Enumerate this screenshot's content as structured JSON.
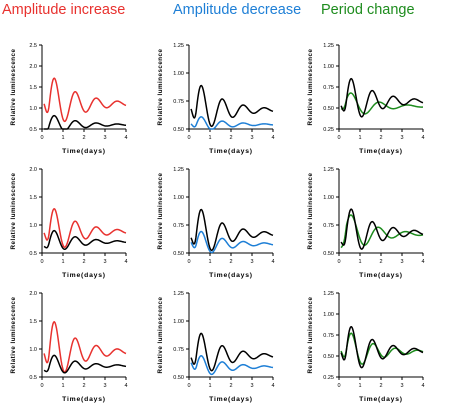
{
  "figure": {
    "columns": [
      {
        "title": "Amplitude increase",
        "color": "#e8322f",
        "condition": "amplitude-increase"
      },
      {
        "title": "Amplitude decrease",
        "color": "#1e7fd6",
        "condition": "amplitude-decrease"
      },
      {
        "title": "Period change",
        "color": "#1e8c1e",
        "condition": "period-change"
      }
    ],
    "xlabel": "Time(days)",
    "ylabel": "Relative luminescence",
    "control_color": "#000000"
  },
  "chart_data": [
    {
      "type": "line",
      "row": 1,
      "col": 1,
      "xlabel": "Time(days)",
      "ylabel": "Relative luminescence",
      "xlim": [
        0,
        4
      ],
      "ylim": [
        0.5,
        2.5
      ],
      "xticks": [
        "0",
        "1",
        "2",
        "3",
        "4"
      ],
      "yticks": [
        "0.5",
        "1.0",
        "1.5",
        "2.0",
        "2.5"
      ],
      "model": {
        "control": {
          "base": 0.6,
          "amp": 0.35,
          "period": 1.0,
          "decay": 0.8,
          "start": 0.45
        },
        "treated": {
          "base": 1.1,
          "amp": 0.95,
          "period": 1.0,
          "decay": 0.75,
          "start": 1.2
        }
      }
    },
    {
      "type": "line",
      "row": 1,
      "col": 2,
      "xlabel": "Time(days)",
      "ylabel": "Relative luminescence",
      "xlim": [
        0,
        4
      ],
      "ylim": [
        0.5,
        1.25
      ],
      "xticks": [
        "0",
        "1",
        "2",
        "3",
        "4"
      ],
      "yticks": [
        "0.50",
        "0.75",
        "1.00",
        "1.25"
      ],
      "model": {
        "control": {
          "base": 0.67,
          "amp": 0.35,
          "period": 1.0,
          "decay": 0.8,
          "start": 0.72
        },
        "treated": {
          "base": 0.54,
          "amp": 0.11,
          "period": 1.0,
          "decay": 0.8,
          "start": 0.56
        }
      }
    },
    {
      "type": "line",
      "row": 1,
      "col": 3,
      "xlabel": "Time(days)",
      "ylabel": "Relative luminescence",
      "xlim": [
        0,
        4
      ],
      "ylim": [
        0.25,
        1.25
      ],
      "xticks": [
        "0",
        "1",
        "2",
        "3",
        "4"
      ],
      "yticks": [
        "0.25",
        "0.50",
        "0.75",
        "1.00",
        "1.25"
      ],
      "model": {
        "control": {
          "base": 0.58,
          "amp": 0.42,
          "period": 1.0,
          "decay": 0.75,
          "start": 0.55
        },
        "treated": {
          "base": 0.52,
          "amp": 0.26,
          "period": 1.35,
          "decay": 0.85,
          "start": 0.5
        }
      }
    },
    {
      "type": "line",
      "row": 2,
      "col": 1,
      "xlabel": "Time(days)",
      "ylabel": "Relative luminescence",
      "xlim": [
        0,
        4
      ],
      "ylim": [
        0.5,
        2.0
      ],
      "xticks": [
        "0",
        "1",
        "2",
        "3",
        "4"
      ],
      "yticks": [
        "0.5",
        "1.0",
        "1.5",
        "2.0"
      ],
      "model": {
        "control": {
          "base": 0.7,
          "amp": 0.32,
          "period": 1.0,
          "decay": 0.8,
          "start": 0.62
        },
        "treated": {
          "base": 0.88,
          "amp": 0.65,
          "period": 1.0,
          "decay": 0.78,
          "start": 0.92
        }
      }
    },
    {
      "type": "line",
      "row": 2,
      "col": 2,
      "xlabel": "Time(days)",
      "ylabel": "Relative luminescence",
      "xlim": [
        0,
        4
      ],
      "ylim": [
        0.5,
        1.25
      ],
      "xticks": [
        "0",
        "1",
        "2",
        "3",
        "4"
      ],
      "yticks": [
        "0.50",
        "0.75",
        "1.00",
        "1.25"
      ],
      "model": {
        "control": {
          "base": 0.67,
          "amp": 0.35,
          "period": 1.0,
          "decay": 0.8,
          "start": 0.66
        },
        "treated": {
          "base": 0.58,
          "amp": 0.18,
          "period": 1.0,
          "decay": 0.8,
          "start": 0.62
        }
      }
    },
    {
      "type": "line",
      "row": 2,
      "col": 3,
      "xlabel": "Time(days)",
      "ylabel": "Relative luminescence",
      "xlim": [
        0,
        4
      ],
      "ylim": [
        0.5,
        1.25
      ],
      "xticks": [
        "0",
        "1",
        "2",
        "3",
        "4"
      ],
      "yticks": [
        "0.50",
        "0.75",
        "1.00",
        "1.25"
      ],
      "model": {
        "control": {
          "base": 0.68,
          "amp": 0.33,
          "period": 1.0,
          "decay": 0.75,
          "start": 0.6
        },
        "treated": {
          "base": 0.67,
          "amp": 0.27,
          "period": 1.3,
          "decay": 0.8,
          "start": 0.52
        }
      }
    },
    {
      "type": "line",
      "row": 3,
      "col": 1,
      "xlabel": "Time(days)",
      "ylabel": "Relative luminescence",
      "xlim": [
        0,
        4
      ],
      "ylim": [
        0.5,
        2.0
      ],
      "xticks": [
        "0",
        "1",
        "2",
        "3",
        "4"
      ],
      "yticks": [
        "0.5",
        "1.0",
        "1.5",
        "2.0"
      ],
      "model": {
        "control": {
          "base": 0.7,
          "amp": 0.3,
          "period": 1.0,
          "decay": 0.8,
          "start": 0.62
        },
        "treated": {
          "base": 0.95,
          "amp": 0.85,
          "period": 1.0,
          "decay": 0.78,
          "start": 1.0
        }
      }
    },
    {
      "type": "line",
      "row": 3,
      "col": 2,
      "xlabel": "Time(days)",
      "ylabel": "Relative luminescence",
      "xlim": [
        0,
        4
      ],
      "ylim": [
        0.5,
        1.25
      ],
      "xticks": [
        "0",
        "1",
        "2",
        "3",
        "4"
      ],
      "yticks": [
        "0.50",
        "0.75",
        "1.00",
        "1.25"
      ],
      "model": {
        "control": {
          "base": 0.69,
          "amp": 0.32,
          "period": 1.0,
          "decay": 0.8,
          "start": 0.7
        },
        "treated": {
          "base": 0.59,
          "amp": 0.16,
          "period": 1.0,
          "decay": 0.8,
          "start": 0.66
        }
      }
    },
    {
      "type": "line",
      "row": 3,
      "col": 3,
      "xlabel": "Time(days)",
      "ylabel": "Relative luminescence",
      "xlim": [
        0,
        4
      ],
      "ylim": [
        0.25,
        1.25
      ],
      "xticks": [
        "0",
        "1",
        "2",
        "3",
        "4"
      ],
      "yticks": [
        "0.25",
        "0.50",
        "0.75",
        "1.00",
        "1.25"
      ],
      "model": {
        "control": {
          "base": 0.56,
          "amp": 0.45,
          "period": 1.0,
          "decay": 0.75,
          "start": 0.58
        },
        "treated": {
          "base": 0.55,
          "amp": 0.35,
          "period": 1.05,
          "decay": 0.78,
          "start": 0.6
        }
      }
    }
  ]
}
